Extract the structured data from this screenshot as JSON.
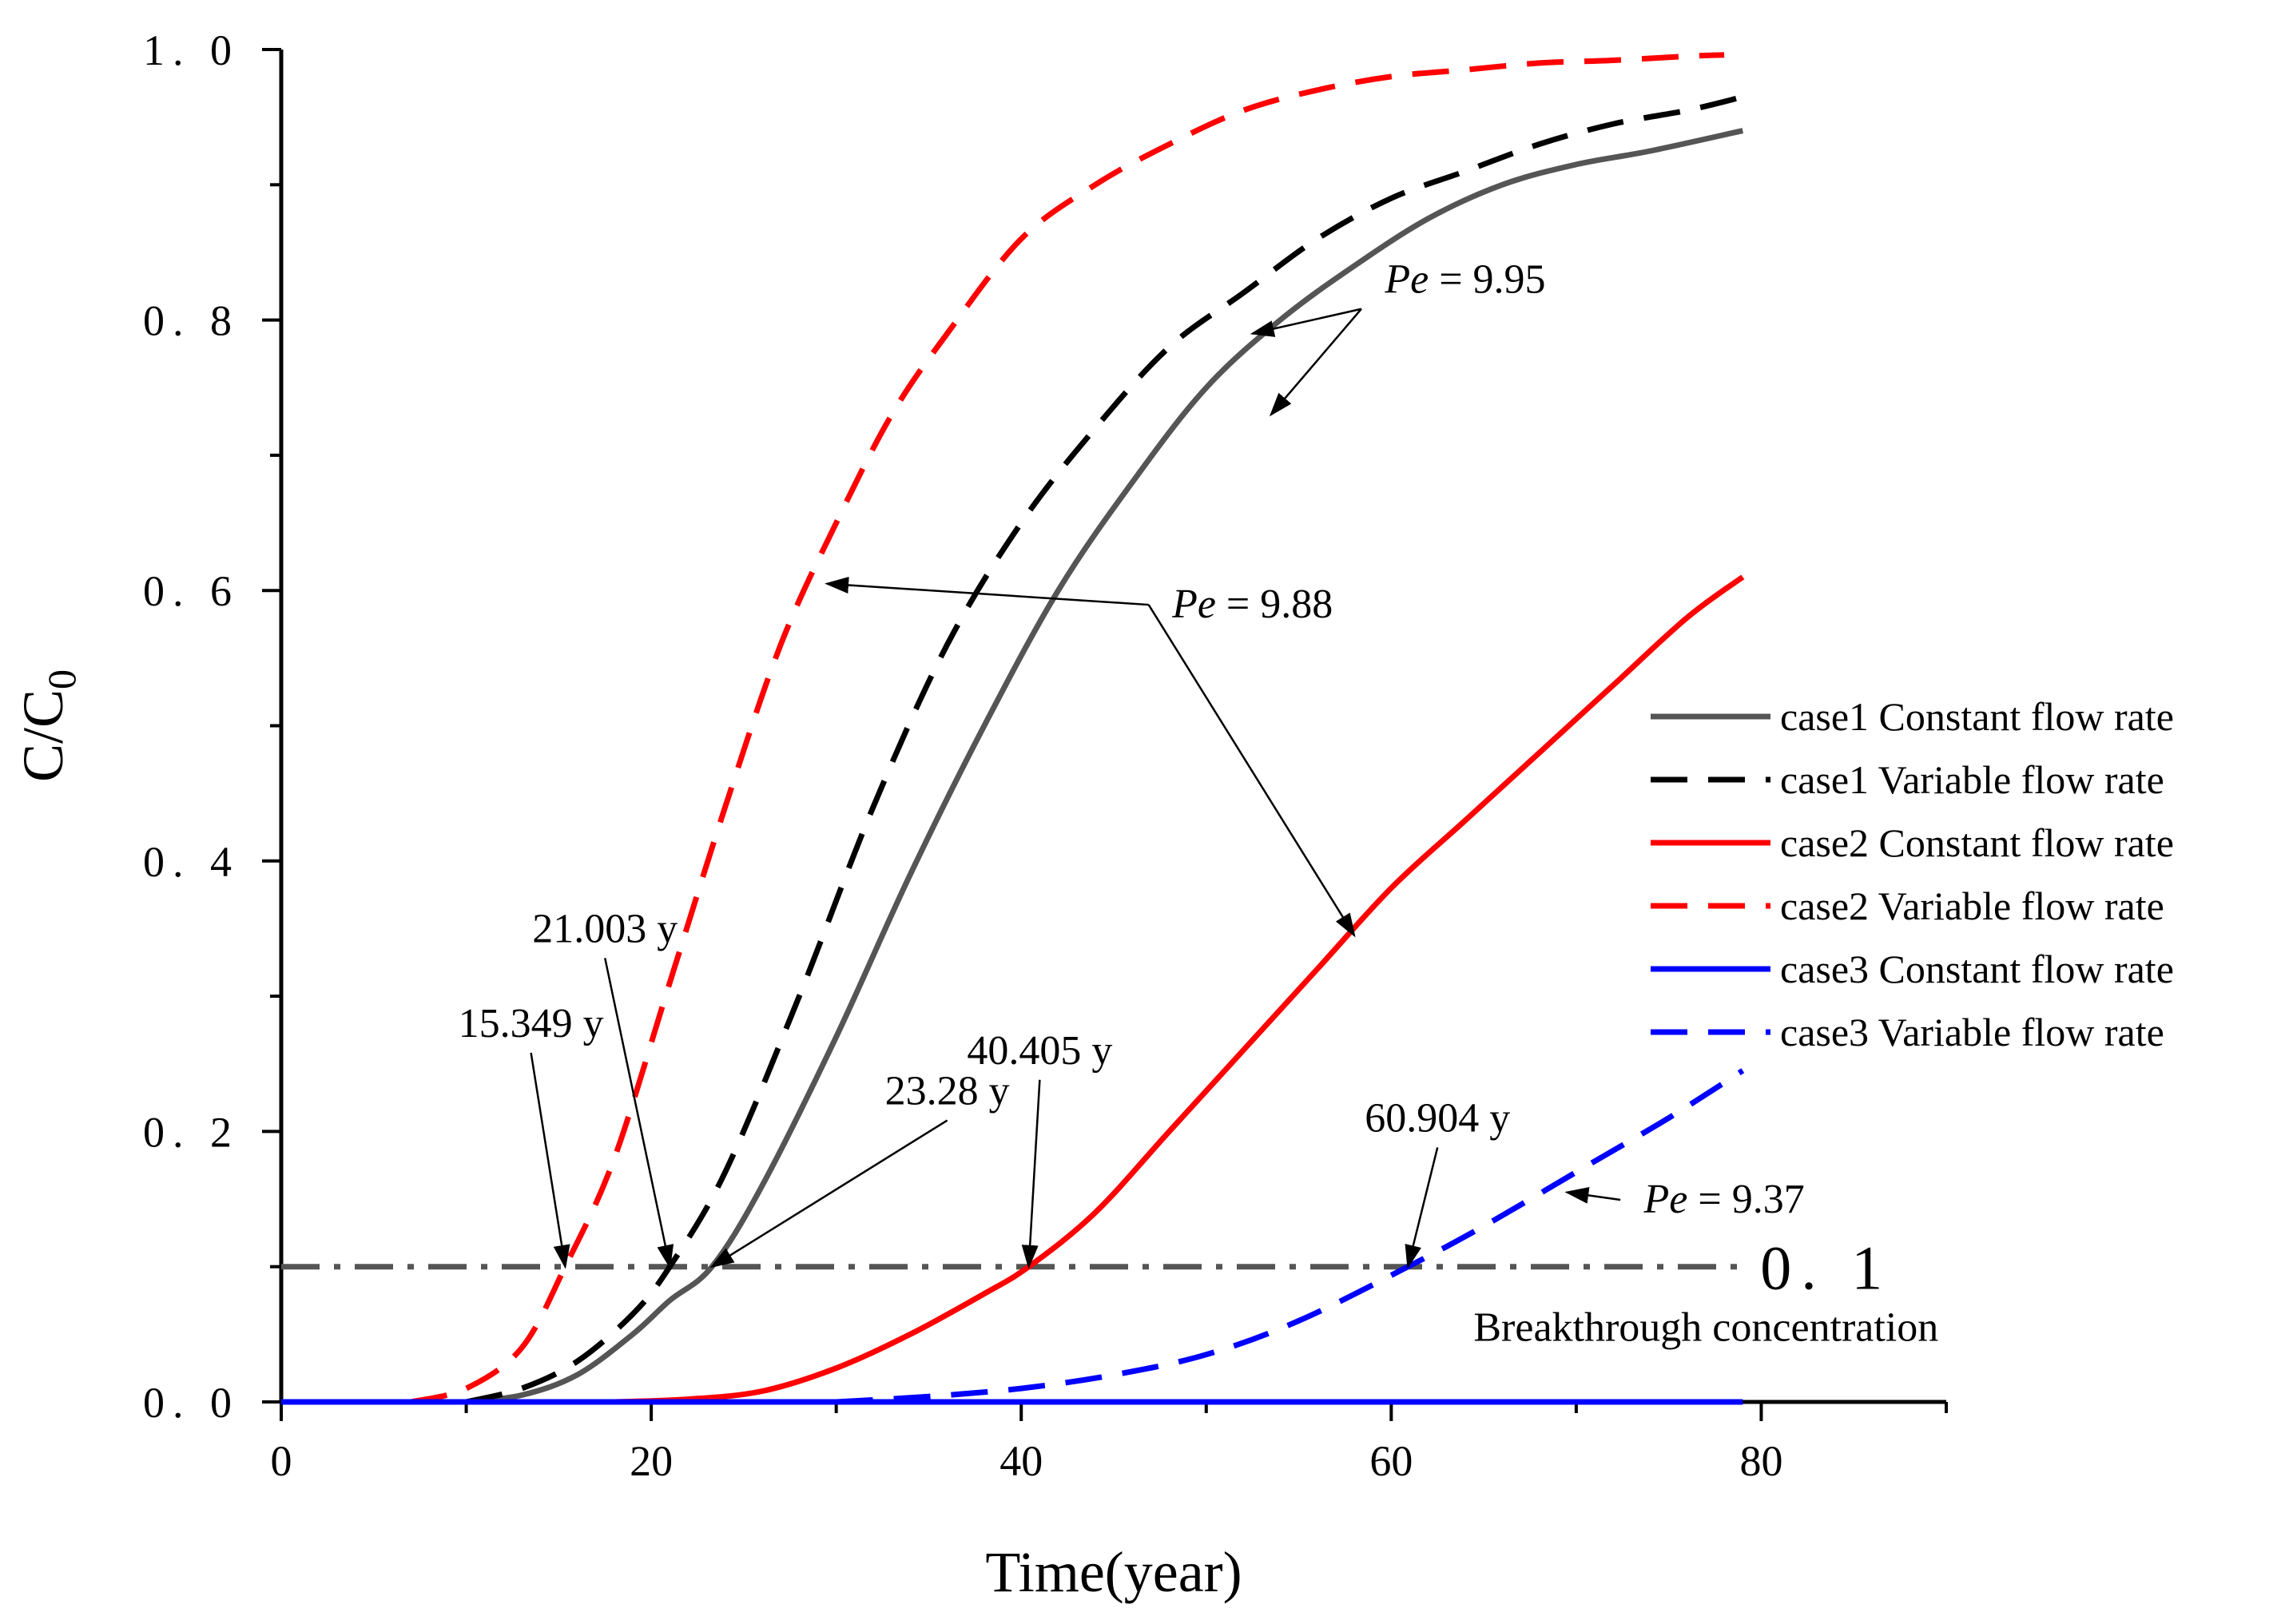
{
  "chart_data": {
    "type": "line",
    "xlabel": "Time(year)",
    "ylabel": "C/C",
    "ylabel_subscript": "0",
    "xlim": [
      0,
      90
    ],
    "ylim": [
      0,
      1.0
    ],
    "x_ticks": [
      0,
      20,
      40,
      60,
      80
    ],
    "x_tick_labels": [
      "0",
      "20",
      "40",
      "60",
      "80"
    ],
    "y_ticks": [
      0,
      0.2,
      0.4,
      0.6,
      0.8,
      1.0
    ],
    "y_tick_labels": [
      "0. 0",
      "0. 2",
      "0. 4",
      "0. 6",
      "0. 8",
      "1. 0"
    ],
    "legend_position": "right",
    "series": [
      {
        "name": "case1 Constant flow rate",
        "color": "#555555",
        "dash": "solid",
        "x": [
          10,
          13,
          16,
          19,
          21,
          23.28,
          26,
          30,
          34,
          38,
          42,
          46,
          50,
          54,
          58,
          62,
          66,
          70,
          74,
          79
        ],
        "y": [
          0,
          0.005,
          0.02,
          0.05,
          0.075,
          0.1,
          0.16,
          0.27,
          0.39,
          0.5,
          0.6,
          0.68,
          0.75,
          0.8,
          0.84,
          0.875,
          0.9,
          0.915,
          0.925,
          0.94
        ]
      },
      {
        "name": "case1 Variable flow rate",
        "color": "#000000",
        "dash": "dashed",
        "x": [
          10,
          13,
          16,
          19,
          21.003,
          24,
          28,
          32,
          36,
          40,
          44,
          48,
          52,
          56,
          60,
          64,
          68,
          72,
          76,
          79
        ],
        "y": [
          0,
          0.01,
          0.03,
          0.065,
          0.1,
          0.17,
          0.3,
          0.44,
          0.56,
          0.65,
          0.72,
          0.78,
          0.82,
          0.86,
          0.89,
          0.91,
          0.93,
          0.945,
          0.955,
          0.965
        ]
      },
      {
        "name": "case2 Constant flow rate",
        "color": "#ff0000",
        "dash": "solid",
        "x": [
          18,
          22,
          26,
          30,
          34,
          38,
          40.405,
          44,
          48,
          52,
          56,
          60,
          64,
          68,
          72,
          76,
          79
        ],
        "y": [
          0,
          0.002,
          0.008,
          0.025,
          0.05,
          0.08,
          0.1,
          0.14,
          0.2,
          0.26,
          0.32,
          0.38,
          0.43,
          0.48,
          0.53,
          0.58,
          0.61
        ]
      },
      {
        "name": "case2 Variable flow rate",
        "color": "#ff0000",
        "dash": "dashed",
        "x": [
          7,
          10,
          13,
          15.349,
          18,
          21,
          24,
          27,
          30,
          33,
          36,
          40,
          44,
          48,
          52,
          56,
          60,
          64,
          68,
          72,
          76,
          78
        ],
        "y": [
          0,
          0.01,
          0.04,
          0.1,
          0.18,
          0.31,
          0.44,
          0.56,
          0.65,
          0.73,
          0.79,
          0.86,
          0.9,
          0.93,
          0.955,
          0.97,
          0.98,
          0.985,
          0.99,
          0.992,
          0.995,
          0.996
        ]
      },
      {
        "name": "case3 Constant flow rate",
        "color": "#0000ff",
        "dash": "solid",
        "x": [
          0,
          79
        ],
        "y": [
          0,
          0
        ]
      },
      {
        "name": "case3 Variable flow rate",
        "color": "#0000ff",
        "dash": "dashed",
        "x": [
          30,
          35,
          40,
          45,
          50,
          55,
          60.904,
          65,
          70,
          75,
          79
        ],
        "y": [
          0,
          0.004,
          0.01,
          0.02,
          0.035,
          0.06,
          0.1,
          0.13,
          0.17,
          0.21,
          0.245
        ]
      }
    ],
    "reference_line": {
      "y": 0.1,
      "x_range": [
        0,
        79
      ],
      "color": "#555555",
      "dash": "dash-dot",
      "value_label": "0. 1",
      "label": "Breakthrough concentration"
    },
    "annotations": [
      {
        "text": "15.349 y",
        "point": [
          15.349,
          0.1
        ],
        "text_at": [
          13.5,
          0.27
        ]
      },
      {
        "text": "21.003 y",
        "point": [
          21.003,
          0.1
        ],
        "text_at": [
          17.5,
          0.34
        ]
      },
      {
        "text": "23.28 y",
        "point": [
          23.28,
          0.1
        ],
        "text_at": [
          36,
          0.22
        ]
      },
      {
        "text": "40.405 y",
        "point": [
          40.405,
          0.1
        ],
        "text_at": [
          41,
          0.25
        ]
      },
      {
        "text": "60.904 y",
        "point": [
          60.904,
          0.1
        ],
        "text_at": [
          62.5,
          0.2
        ]
      },
      {
        "text_prefix": "Pe",
        "text": " = 9.95",
        "point": [
          52.5,
          0.79
        ],
        "text_at": [
          64,
          0.82
        ],
        "point2": [
          53.5,
          0.73
        ]
      },
      {
        "text_prefix": "Pe",
        "text": " = 9.88",
        "point": [
          29.5,
          0.605
        ],
        "text_at": [
          52.5,
          0.58
        ],
        "point2": [
          58,
          0.345
        ]
      },
      {
        "text_prefix": "Pe",
        "text": " = 9.37",
        "point": [
          69.5,
          0.155
        ],
        "text_at": [
          78,
          0.14
        ]
      }
    ]
  }
}
